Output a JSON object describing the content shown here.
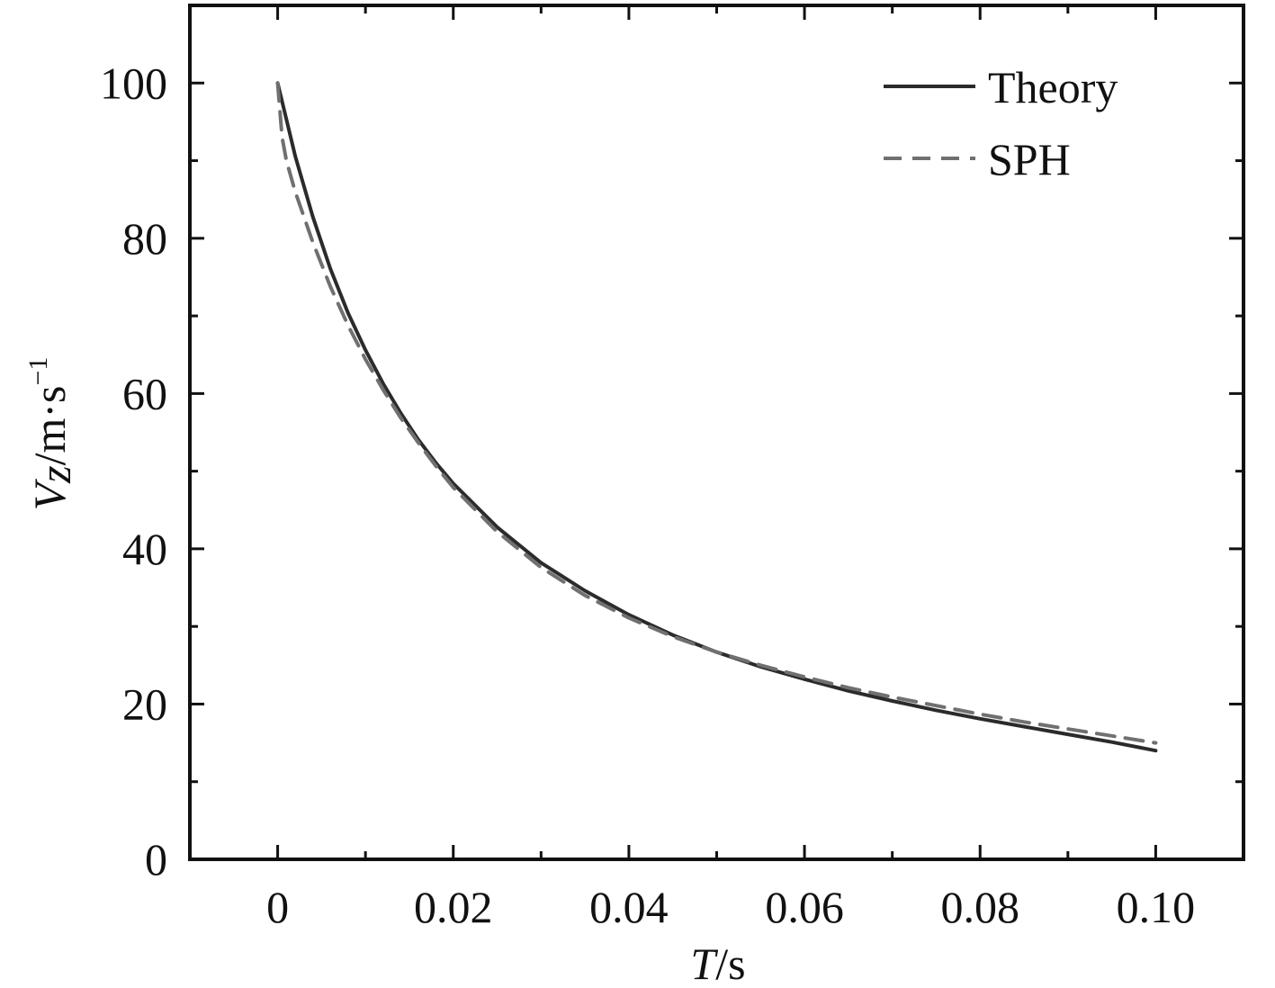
{
  "chart_data": {
    "type": "line",
    "title": "",
    "xlabel": {
      "var": "T",
      "unit": "/s"
    },
    "ylabel": {
      "var": "V",
      "sub": "z",
      "unit": "/m·s",
      "sup": "−1"
    },
    "xlim": [
      -0.01,
      0.11
    ],
    "ylim": [
      0,
      110
    ],
    "xticks": [
      0,
      0.02,
      0.04,
      0.06,
      0.08,
      0.1
    ],
    "xtick_labels": [
      "0",
      "0.02",
      "0.04",
      "0.06",
      "0.08",
      "0.10"
    ],
    "yticks": [
      0,
      20,
      40,
      60,
      80,
      100
    ],
    "ytick_labels": [
      "0",
      "20",
      "40",
      "60",
      "80",
      "100"
    ],
    "grid": false,
    "legend_position": "top-right",
    "series": [
      {
        "name": "Theory",
        "style": "solid",
        "color": "#2b2b2b",
        "points": [
          [
            0,
            100
          ],
          [
            0.002,
            90.6
          ],
          [
            0.004,
            82.8
          ],
          [
            0.006,
            76.1
          ],
          [
            0.008,
            70.4
          ],
          [
            0.01,
            65.6
          ],
          [
            0.012,
            61.3
          ],
          [
            0.014,
            57.5
          ],
          [
            0.016,
            54.1
          ],
          [
            0.018,
            51.1
          ],
          [
            0.02,
            48.4
          ],
          [
            0.025,
            42.8
          ],
          [
            0.03,
            38.2
          ],
          [
            0.035,
            34.6
          ],
          [
            0.04,
            31.5
          ],
          [
            0.045,
            28.9
          ],
          [
            0.05,
            26.7
          ],
          [
            0.055,
            24.8
          ],
          [
            0.06,
            23.2
          ],
          [
            0.065,
            21.7
          ],
          [
            0.07,
            20.4
          ],
          [
            0.075,
            19.2
          ],
          [
            0.08,
            18.1
          ],
          [
            0.085,
            17.1
          ],
          [
            0.09,
            16.1
          ],
          [
            0.095,
            15.1
          ],
          [
            0.1,
            14.0
          ]
        ]
      },
      {
        "name": "SPH",
        "style": "dashed",
        "color": "#707070",
        "points": [
          [
            0,
            100
          ],
          [
            0.0005,
            93
          ],
          [
            0.001,
            90
          ],
          [
            0.002,
            86
          ],
          [
            0.004,
            79.5
          ],
          [
            0.006,
            73.8
          ],
          [
            0.008,
            68.8
          ],
          [
            0.01,
            64.4
          ],
          [
            0.012,
            60.5
          ],
          [
            0.014,
            56.9
          ],
          [
            0.016,
            53.7
          ],
          [
            0.018,
            50.7
          ],
          [
            0.02,
            47.9
          ],
          [
            0.025,
            42.2
          ],
          [
            0.03,
            37.6
          ],
          [
            0.035,
            34.0
          ],
          [
            0.04,
            31.1
          ],
          [
            0.045,
            28.7
          ],
          [
            0.05,
            26.7
          ],
          [
            0.055,
            25.0
          ],
          [
            0.06,
            23.5
          ],
          [
            0.065,
            22.1
          ],
          [
            0.07,
            20.9
          ],
          [
            0.075,
            19.8
          ],
          [
            0.08,
            18.7
          ],
          [
            0.085,
            17.7
          ],
          [
            0.09,
            16.8
          ],
          [
            0.095,
            15.9
          ],
          [
            0.1,
            15.0
          ]
        ]
      }
    ]
  }
}
